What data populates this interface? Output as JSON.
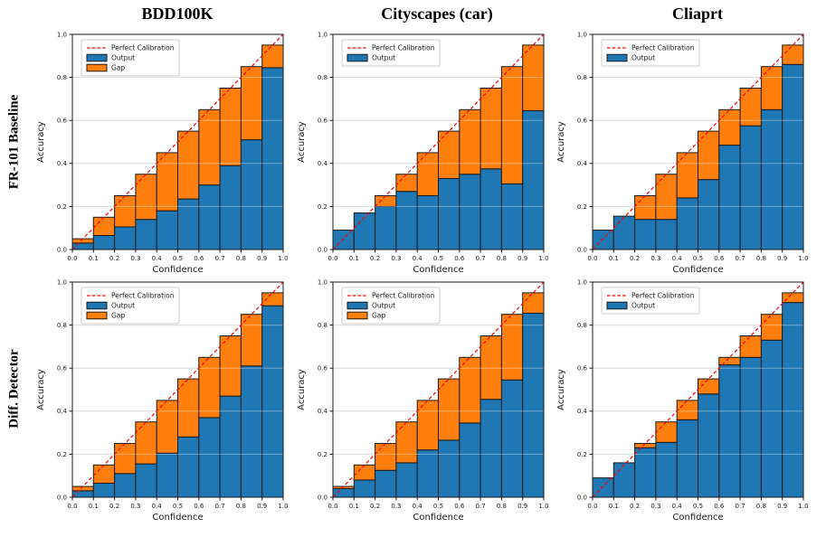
{
  "figure": {
    "columns": [
      "BDD100K",
      "Cityscapes (car)",
      "Cliaprt"
    ],
    "rows": [
      "FR-101 Baseline",
      "Diff. Detector"
    ],
    "colors": {
      "output": "#1f77b4",
      "gap": "#ff7f0e",
      "diagonal": "#ff0000",
      "bar_edge": "#1a1a1a",
      "grid": "#c9c9c9",
      "spine": "#1a1a1a",
      "legend_border": "#cccccc"
    }
  },
  "chart_data": [
    {
      "type": "bar",
      "title": "BDD100K",
      "row_label": "FR-101 Baseline",
      "xlabel": "Confidence",
      "ylabel": "Accuracy",
      "xlim": [
        0.0,
        1.0
      ],
      "ylim": [
        0.0,
        1.0
      ],
      "bin_width": 0.1,
      "grid": true,
      "xticks": [
        "0.0",
        "0.1",
        "0.2",
        "0.3",
        "0.4",
        "0.5",
        "0.6",
        "0.7",
        "0.8",
        "0.9",
        "1.0"
      ],
      "yticks": [
        "0.0",
        "0.2",
        "0.4",
        "0.6",
        "0.8",
        "1.0"
      ],
      "legend_position": "upper left",
      "legend": [
        "Perfect Calibration",
        "Output",
        "Gap"
      ],
      "diagonal": {
        "label": "Perfect Calibration",
        "style": "dashed",
        "from": [
          0,
          0
        ],
        "to": [
          1,
          1
        ]
      },
      "series": [
        {
          "name": "Output",
          "values": [
            0.03,
            0.065,
            0.105,
            0.14,
            0.18,
            0.235,
            0.3,
            0.39,
            0.51,
            0.845
          ]
        },
        {
          "name": "Gap",
          "stack_top": [
            0.05,
            0.15,
            0.25,
            0.35,
            0.45,
            0.55,
            0.65,
            0.75,
            0.85,
            0.95
          ]
        }
      ]
    },
    {
      "type": "bar",
      "title": "Cityscapes (car)",
      "row_label": "FR-101 Baseline",
      "xlabel": "Confidence",
      "ylabel": "Accuracy",
      "xlim": [
        0.0,
        1.0
      ],
      "ylim": [
        0.0,
        1.0
      ],
      "bin_width": 0.1,
      "grid": true,
      "xticks": [
        "0.0",
        "0.1",
        "0.2",
        "0.3",
        "0.4",
        "0.5",
        "0.6",
        "0.7",
        "0.8",
        "0.9",
        "1.0"
      ],
      "yticks": [
        "0.0",
        "0.2",
        "0.4",
        "0.6",
        "0.8",
        "1.0"
      ],
      "legend_position": "upper left",
      "legend": [
        "Perfect Calibration",
        "Output"
      ],
      "diagonal": {
        "label": "Perfect Calibration",
        "style": "dashed",
        "from": [
          0,
          0
        ],
        "to": [
          1,
          1
        ]
      },
      "series": [
        {
          "name": "Output",
          "values": [
            0.09,
            0.17,
            0.2,
            0.27,
            0.25,
            0.33,
            0.35,
            0.375,
            0.305,
            0.645
          ]
        },
        {
          "name": "Gap",
          "stack_top": [
            0.09,
            0.17,
            0.25,
            0.35,
            0.45,
            0.55,
            0.65,
            0.75,
            0.85,
            0.95
          ]
        }
      ]
    },
    {
      "type": "bar",
      "title": "Cliaprt",
      "row_label": "FR-101 Baseline",
      "xlabel": "Confidence",
      "ylabel": "Accuracy",
      "xlim": [
        0.0,
        1.0
      ],
      "ylim": [
        0.0,
        1.0
      ],
      "bin_width": 0.1,
      "grid": true,
      "xticks": [
        "0.0",
        "0.1",
        "0.2",
        "0.3",
        "0.4",
        "0.5",
        "0.6",
        "0.7",
        "0.8",
        "0.9",
        "1.0"
      ],
      "yticks": [
        "0.0",
        "0.2",
        "0.4",
        "0.6",
        "0.8",
        "1.0"
      ],
      "legend_position": "upper left",
      "legend": [
        "Perfect Calibration",
        "Output"
      ],
      "diagonal": {
        "label": "Perfect Calibration",
        "style": "dashed",
        "from": [
          0,
          0
        ],
        "to": [
          1,
          1
        ]
      },
      "series": [
        {
          "name": "Output",
          "values": [
            0.09,
            0.155,
            0.14,
            0.14,
            0.24,
            0.325,
            0.485,
            0.575,
            0.65,
            0.86
          ]
        },
        {
          "name": "Gap",
          "stack_top": [
            0.09,
            0.155,
            0.25,
            0.35,
            0.45,
            0.55,
            0.65,
            0.75,
            0.85,
            0.95
          ]
        }
      ]
    },
    {
      "type": "bar",
      "title": "BDD100K",
      "row_label": "Diff. Detector",
      "xlabel": "Confidence",
      "ylabel": "Accuracy",
      "xlim": [
        0.0,
        1.0
      ],
      "ylim": [
        0.0,
        1.0
      ],
      "bin_width": 0.1,
      "grid": true,
      "xticks": [
        "0.0",
        "0.1",
        "0.2",
        "0.3",
        "0.4",
        "0.5",
        "0.6",
        "0.7",
        "0.8",
        "0.9",
        "1.0"
      ],
      "yticks": [
        "0.0",
        "0.2",
        "0.4",
        "0.6",
        "0.8",
        "1.0"
      ],
      "legend_position": "upper left",
      "legend": [
        "Perfect Calibration",
        "Output",
        "Gap"
      ],
      "diagonal": {
        "label": "Perfect Calibration",
        "style": "dashed",
        "from": [
          0,
          0
        ],
        "to": [
          1,
          1
        ]
      },
      "series": [
        {
          "name": "Output",
          "values": [
            0.03,
            0.065,
            0.11,
            0.155,
            0.205,
            0.28,
            0.37,
            0.47,
            0.61,
            0.89
          ]
        },
        {
          "name": "Gap",
          "stack_top": [
            0.05,
            0.15,
            0.25,
            0.35,
            0.45,
            0.55,
            0.65,
            0.75,
            0.85,
            0.95
          ]
        }
      ]
    },
    {
      "type": "bar",
      "title": "Cityscapes (car)",
      "row_label": "Diff. Detector",
      "xlabel": "Confidence",
      "ylabel": "Accuracy",
      "xlim": [
        0.0,
        1.0
      ],
      "ylim": [
        0.0,
        1.0
      ],
      "bin_width": 0.1,
      "grid": true,
      "xticks": [
        "0.0",
        "0.1",
        "0.2",
        "0.3",
        "0.4",
        "0.5",
        "0.6",
        "0.7",
        "0.8",
        "0.9",
        "1.0"
      ],
      "yticks": [
        "0.0",
        "0.2",
        "0.4",
        "0.6",
        "0.8",
        "1.0"
      ],
      "legend_position": "upper left",
      "legend": [
        "Perfect Calibration",
        "Output",
        "Gap"
      ],
      "diagonal": {
        "label": "Perfect Calibration",
        "style": "dashed",
        "from": [
          0,
          0
        ],
        "to": [
          1,
          1
        ]
      },
      "series": [
        {
          "name": "Output",
          "values": [
            0.04,
            0.08,
            0.125,
            0.16,
            0.22,
            0.265,
            0.345,
            0.455,
            0.545,
            0.855
          ]
        },
        {
          "name": "Gap",
          "stack_top": [
            0.05,
            0.15,
            0.25,
            0.35,
            0.45,
            0.55,
            0.65,
            0.75,
            0.85,
            0.95
          ]
        }
      ]
    },
    {
      "type": "bar",
      "title": "Cliaprt",
      "row_label": "Diff. Detector",
      "xlabel": "Confidence",
      "ylabel": "Accuracy",
      "xlim": [
        0.0,
        1.0
      ],
      "ylim": [
        0.0,
        1.0
      ],
      "bin_width": 0.1,
      "grid": true,
      "xticks": [
        "0.0",
        "0.1",
        "0.2",
        "0.3",
        "0.4",
        "0.5",
        "0.6",
        "0.7",
        "0.8",
        "0.9",
        "1.0"
      ],
      "yticks": [
        "0.0",
        "0.2",
        "0.4",
        "0.6",
        "0.8",
        "1.0"
      ],
      "legend_position": "upper left",
      "legend": [
        "Perfect Calibration",
        "Output"
      ],
      "diagonal": {
        "label": "Perfect Calibration",
        "style": "dashed",
        "from": [
          0,
          0
        ],
        "to": [
          1,
          1
        ]
      },
      "series": [
        {
          "name": "Output",
          "values": [
            0.09,
            0.16,
            0.23,
            0.255,
            0.36,
            0.48,
            0.615,
            0.65,
            0.73,
            0.905
          ]
        },
        {
          "name": "Gap",
          "stack_top": [
            0.09,
            0.16,
            0.25,
            0.35,
            0.45,
            0.55,
            0.65,
            0.75,
            0.85,
            0.95
          ]
        }
      ]
    }
  ]
}
